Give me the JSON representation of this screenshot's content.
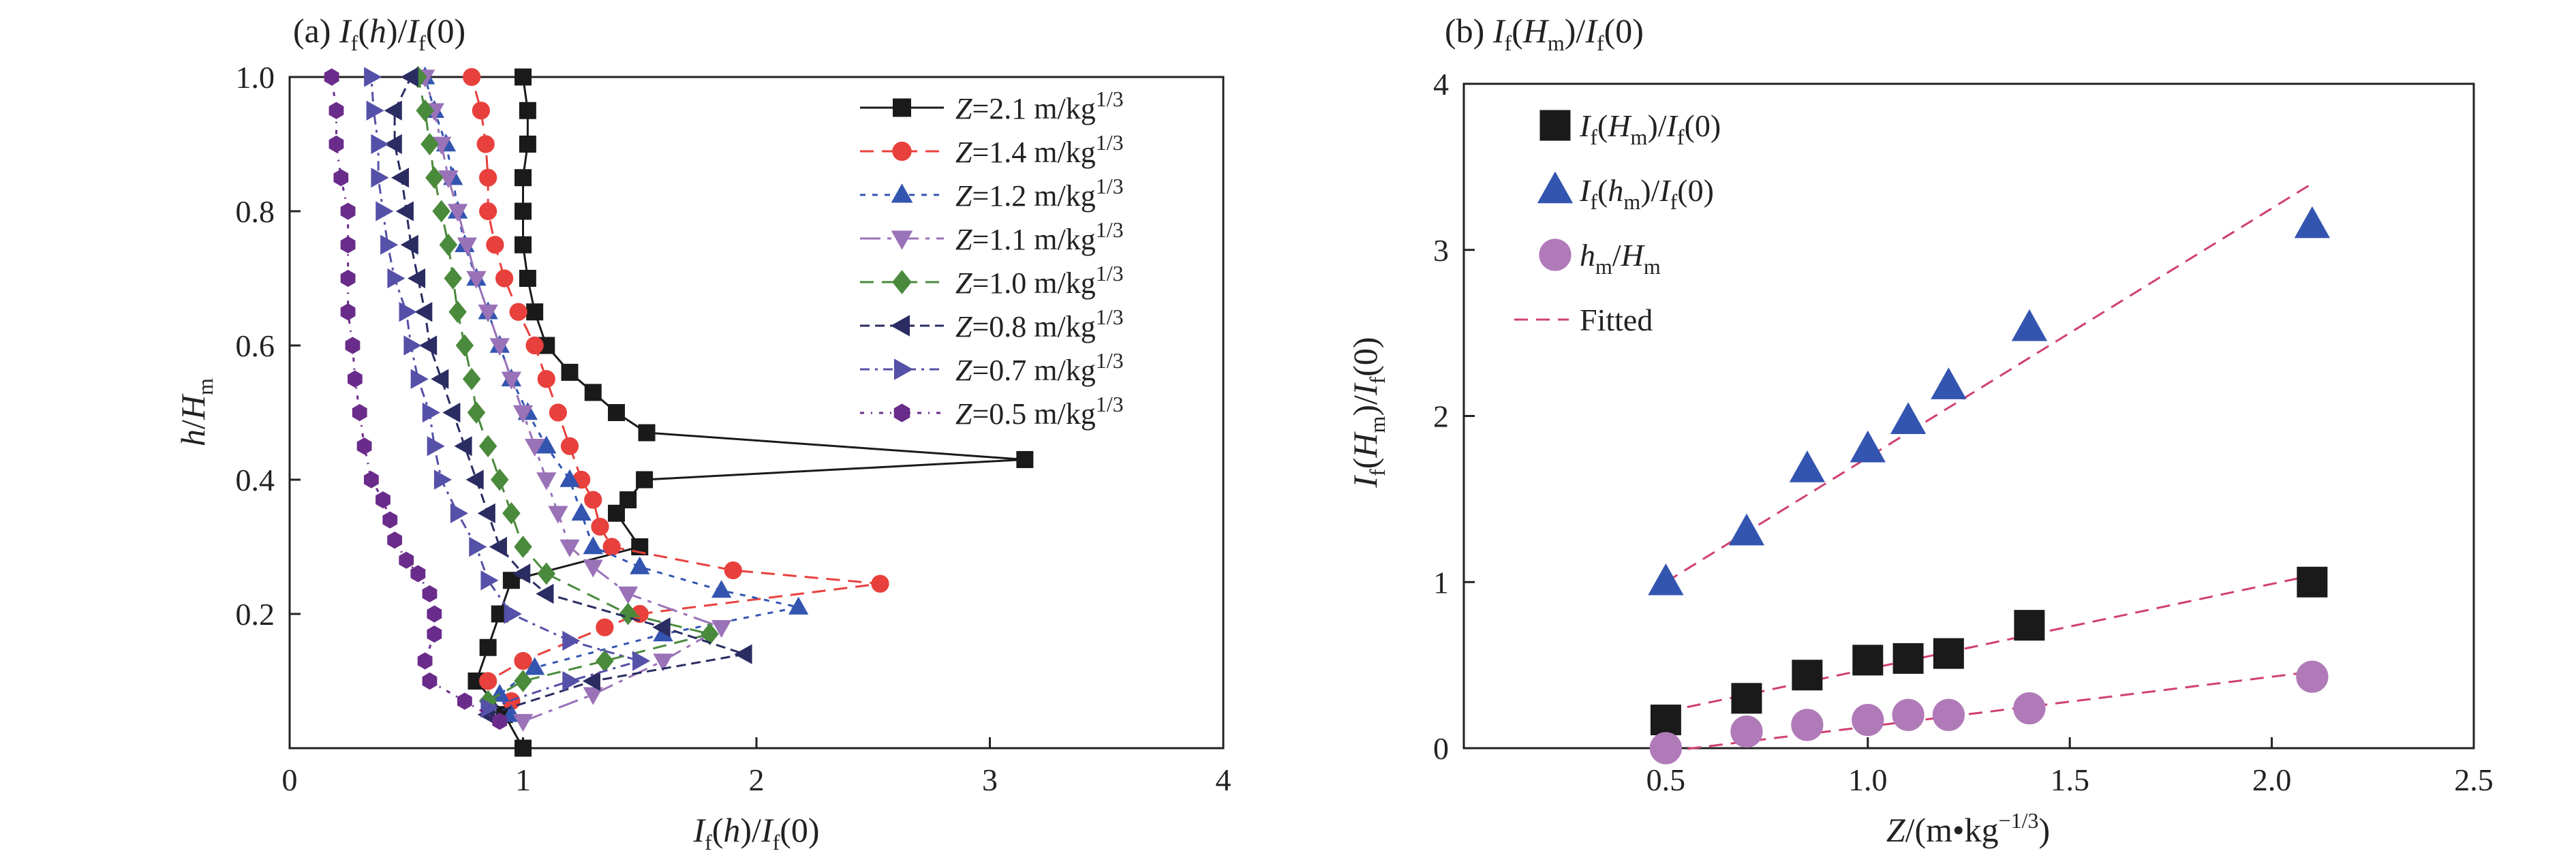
{
  "panel_a": {
    "title": {
      "pre": "(a) ",
      "I": "I",
      "f": "f",
      "h": "h",
      "mid": ")/",
      "I2": "I",
      "f2": "f",
      "end": "(0)"
    },
    "xlabel": {
      "I": "I",
      "f": "f",
      "h": "h",
      "mid": ")/",
      "I2": "I",
      "f2": "f",
      "end": "(0)"
    },
    "ylabel": {
      "h": "h",
      "slash": "/",
      "H": "H",
      "m": "m"
    },
    "legend_prefix": "Z",
    "legend_unit": " m/kg",
    "legend_exp": "1/3"
  },
  "panel_b": {
    "title": {
      "pre": "(b) ",
      "I": "I",
      "f": "f",
      "H": "H",
      "m": "m",
      "mid": ")/",
      "I2": "I",
      "f2": "f",
      "end": "(0)"
    },
    "ylabel": {
      "I": "I",
      "f": "f",
      "H": "H",
      "m": "m",
      "mid": ")/",
      "I2": "I",
      "f2": "f",
      "end": "(0)"
    },
    "xlabel": {
      "Z": "Z",
      "mid": "/(m•kg",
      "exp": "−1/3",
      "end": ")"
    },
    "legend": {
      "s1": {
        "I": "I",
        "f": "f",
        "H": "H",
        "m": "m",
        "mid": ")/",
        "I2": "I",
        "f2": "f",
        "end": "(0)"
      },
      "s2": {
        "I": "I",
        "f": "f",
        "h": "h",
        "m": "m",
        "mid": ")/",
        "I2": "I",
        "f2": "f",
        "end": "(0)"
      },
      "s3": {
        "h": "h",
        "m": "m",
        "slash": "/",
        "H": "H",
        "m2": "m"
      },
      "s4": "Fitted"
    }
  },
  "chart_data": [
    {
      "type": "line",
      "title": "(a) If(h)/If(0)",
      "xlabel": "If(h)/If(0)",
      "ylabel": "h/Hm",
      "xlim": [
        0,
        4
      ],
      "ylim": [
        0,
        1
      ],
      "xticks": [
        0,
        1,
        2,
        3,
        4
      ],
      "yticks": [
        0.2,
        0.4,
        0.6,
        0.8,
        1.0
      ],
      "legend_position": "top-right",
      "series": [
        {
          "name": "Z=2.1 m/kg1/3",
          "z": "2.1",
          "color": "#1a1a1a",
          "marker": "square",
          "dash": "",
          "points": [
            [
              1.0,
              0.0
            ],
            [
              0.92,
              0.05
            ],
            [
              0.8,
              0.1
            ],
            [
              0.85,
              0.15
            ],
            [
              0.9,
              0.2
            ],
            [
              0.95,
              0.25
            ],
            [
              1.5,
              0.3
            ],
            [
              1.4,
              0.35
            ],
            [
              1.45,
              0.37
            ],
            [
              1.52,
              0.4
            ],
            [
              3.15,
              0.43
            ],
            [
              1.53,
              0.47
            ],
            [
              1.4,
              0.5
            ],
            [
              1.3,
              0.53
            ],
            [
              1.2,
              0.56
            ],
            [
              1.1,
              0.6
            ],
            [
              1.05,
              0.65
            ],
            [
              1.02,
              0.7
            ],
            [
              1.0,
              0.75
            ],
            [
              1.0,
              0.8
            ],
            [
              1.0,
              0.85
            ],
            [
              1.02,
              0.9
            ],
            [
              1.02,
              0.95
            ],
            [
              1.0,
              1.0
            ]
          ]
        },
        {
          "name": "Z=1.4 m/kg1/3",
          "z": "1.4",
          "color": "#e8403c",
          "marker": "circle",
          "dash": "20,12",
          "points": [
            [
              0.95,
              0.07
            ],
            [
              0.85,
              0.1
            ],
            [
              1.0,
              0.13
            ],
            [
              1.35,
              0.18
            ],
            [
              1.5,
              0.2
            ],
            [
              2.53,
              0.245
            ],
            [
              1.9,
              0.265
            ],
            [
              1.38,
              0.3
            ],
            [
              1.33,
              0.33
            ],
            [
              1.3,
              0.37
            ],
            [
              1.25,
              0.4
            ],
            [
              1.2,
              0.45
            ],
            [
              1.15,
              0.5
            ],
            [
              1.1,
              0.55
            ],
            [
              1.05,
              0.6
            ],
            [
              0.98,
              0.65
            ],
            [
              0.92,
              0.7
            ],
            [
              0.88,
              0.75
            ],
            [
              0.85,
              0.8
            ],
            [
              0.85,
              0.85
            ],
            [
              0.84,
              0.9
            ],
            [
              0.82,
              0.95
            ],
            [
              0.78,
              1.0
            ]
          ]
        },
        {
          "name": "Z=1.2 m/kg1/3",
          "z": "1.2",
          "color": "#3355b0",
          "marker": "triangle-up",
          "dash": "8,10",
          "points": [
            [
              0.95,
              0.05
            ],
            [
              0.9,
              0.08
            ],
            [
              1.05,
              0.12
            ],
            [
              1.6,
              0.17
            ],
            [
              2.18,
              0.21
            ],
            [
              1.85,
              0.235
            ],
            [
              1.5,
              0.27
            ],
            [
              1.3,
              0.3
            ],
            [
              1.25,
              0.35
            ],
            [
              1.2,
              0.4
            ],
            [
              1.1,
              0.45
            ],
            [
              1.02,
              0.5
            ],
            [
              0.95,
              0.55
            ],
            [
              0.9,
              0.6
            ],
            [
              0.85,
              0.65
            ],
            [
              0.8,
              0.7
            ],
            [
              0.75,
              0.75
            ],
            [
              0.72,
              0.8
            ],
            [
              0.7,
              0.85
            ],
            [
              0.67,
              0.9
            ],
            [
              0.62,
              0.95
            ],
            [
              0.58,
              1.0
            ]
          ]
        },
        {
          "name": "Z=1.1 m/kg1/3",
          "z": "1.1",
          "color": "#9a72b8",
          "marker": "triangle-down",
          "dash": "30,10,6,10",
          "points": [
            [
              1.0,
              0.04
            ],
            [
              1.3,
              0.08
            ],
            [
              1.6,
              0.13
            ],
            [
              1.85,
              0.18
            ],
            [
              1.45,
              0.23
            ],
            [
              1.3,
              0.27
            ],
            [
              1.2,
              0.3
            ],
            [
              1.15,
              0.35
            ],
            [
              1.1,
              0.4
            ],
            [
              1.05,
              0.45
            ],
            [
              1.0,
              0.5
            ],
            [
              0.95,
              0.55
            ],
            [
              0.9,
              0.6
            ],
            [
              0.85,
              0.65
            ],
            [
              0.8,
              0.7
            ],
            [
              0.76,
              0.75
            ],
            [
              0.72,
              0.8
            ],
            [
              0.68,
              0.85
            ],
            [
              0.65,
              0.9
            ],
            [
              0.62,
              0.95
            ],
            [
              0.58,
              1.0
            ]
          ]
        },
        {
          "name": "Z=1.0 m/kg1/3",
          "z": "1.0",
          "color": "#4a8a3c",
          "marker": "diamond",
          "dash": "20,12",
          "points": [
            [
              0.85,
              0.07
            ],
            [
              1.0,
              0.1
            ],
            [
              1.35,
              0.13
            ],
            [
              1.8,
              0.17
            ],
            [
              1.45,
              0.2
            ],
            [
              1.1,
              0.26
            ],
            [
              1.0,
              0.3
            ],
            [
              0.95,
              0.35
            ],
            [
              0.9,
              0.4
            ],
            [
              0.85,
              0.45
            ],
            [
              0.8,
              0.5
            ],
            [
              0.78,
              0.55
            ],
            [
              0.75,
              0.6
            ],
            [
              0.72,
              0.65
            ],
            [
              0.7,
              0.7
            ],
            [
              0.68,
              0.75
            ],
            [
              0.65,
              0.8
            ],
            [
              0.62,
              0.85
            ],
            [
              0.6,
              0.9
            ],
            [
              0.58,
              0.95
            ],
            [
              0.55,
              1.0
            ]
          ]
        },
        {
          "name": "Z=0.8 m/kg1/3",
          "z": "0.8",
          "color": "#2a2c62",
          "marker": "triangle-left",
          "dash": "14,8",
          "points": [
            [
              0.85,
              0.05
            ],
            [
              1.3,
              0.1
            ],
            [
              1.95,
              0.14
            ],
            [
              1.6,
              0.18
            ],
            [
              1.1,
              0.23
            ],
            [
              1.0,
              0.26
            ],
            [
              0.9,
              0.3
            ],
            [
              0.85,
              0.35
            ],
            [
              0.8,
              0.4
            ],
            [
              0.75,
              0.45
            ],
            [
              0.7,
              0.5
            ],
            [
              0.65,
              0.55
            ],
            [
              0.6,
              0.6
            ],
            [
              0.58,
              0.65
            ],
            [
              0.55,
              0.7
            ],
            [
              0.52,
              0.75
            ],
            [
              0.5,
              0.8
            ],
            [
              0.48,
              0.85
            ],
            [
              0.45,
              0.9
            ],
            [
              0.45,
              0.95
            ],
            [
              0.52,
              1.0
            ]
          ]
        },
        {
          "name": "Z=0.7 m/kg1/3",
          "z": "0.7",
          "color": "#5550a8",
          "marker": "triangle-right",
          "dash": "14,8,4,8",
          "points": [
            [
              0.85,
              0.06
            ],
            [
              1.2,
              0.1
            ],
            [
              1.5,
              0.13
            ],
            [
              1.2,
              0.16
            ],
            [
              0.95,
              0.2
            ],
            [
              0.85,
              0.25
            ],
            [
              0.8,
              0.3
            ],
            [
              0.72,
              0.35
            ],
            [
              0.65,
              0.4
            ],
            [
              0.62,
              0.45
            ],
            [
              0.6,
              0.5
            ],
            [
              0.55,
              0.55
            ],
            [
              0.52,
              0.6
            ],
            [
              0.5,
              0.65
            ],
            [
              0.45,
              0.7
            ],
            [
              0.42,
              0.75
            ],
            [
              0.4,
              0.8
            ],
            [
              0.38,
              0.85
            ],
            [
              0.38,
              0.9
            ],
            [
              0.36,
              0.95
            ],
            [
              0.35,
              1.0
            ]
          ]
        },
        {
          "name": "Z=0.5 m/kg1/3",
          "z": "0.5",
          "color": "#6a2c8a",
          "marker": "hexagon",
          "dash": "6,10,2,10",
          "points": [
            [
              0.9,
              0.04
            ],
            [
              0.75,
              0.07
            ],
            [
              0.6,
              0.1
            ],
            [
              0.58,
              0.13
            ],
            [
              0.62,
              0.17
            ],
            [
              0.62,
              0.2
            ],
            [
              0.6,
              0.23
            ],
            [
              0.55,
              0.26
            ],
            [
              0.5,
              0.28
            ],
            [
              0.45,
              0.31
            ],
            [
              0.43,
              0.34
            ],
            [
              0.4,
              0.37
            ],
            [
              0.35,
              0.4
            ],
            [
              0.32,
              0.45
            ],
            [
              0.3,
              0.5
            ],
            [
              0.28,
              0.55
            ],
            [
              0.27,
              0.6
            ],
            [
              0.25,
              0.65
            ],
            [
              0.25,
              0.7
            ],
            [
              0.25,
              0.75
            ],
            [
              0.25,
              0.8
            ],
            [
              0.22,
              0.85
            ],
            [
              0.2,
              0.9
            ],
            [
              0.2,
              0.95
            ],
            [
              0.18,
              1.0
            ]
          ]
        }
      ]
    },
    {
      "type": "scatter",
      "title": "(b) If(Hm)/If(0)",
      "xlabel": "Z/(m•kg−1/3)",
      "ylabel": "If(Hm)/If(0)",
      "xlim": [
        0,
        2.5
      ],
      "ylim": [
        0,
        4
      ],
      "xticks": [
        0.5,
        1.0,
        1.5,
        2.0,
        2.5
      ],
      "yticks": [
        0,
        1,
        2,
        3,
        4
      ],
      "legend_position": "top-left",
      "series": [
        {
          "name": "If(Hm)/If(0)",
          "color": "#1a1a1a",
          "marker": "square",
          "x": [
            0.5,
            0.7,
            0.85,
            1.0,
            1.1,
            1.2,
            1.4,
            2.1
          ],
          "y": [
            0.17,
            0.3,
            0.44,
            0.53,
            0.54,
            0.57,
            0.74,
            1.0
          ]
        },
        {
          "name": "If(hm)/If(0)",
          "color": "#3355b0",
          "marker": "triangle-up",
          "x": [
            0.5,
            0.7,
            0.85,
            1.0,
            1.1,
            1.2,
            1.4,
            2.1
          ],
          "y": [
            1.0,
            1.3,
            1.68,
            1.8,
            1.97,
            2.18,
            2.53,
            3.15
          ]
        },
        {
          "name": "hm/Hm",
          "color": "#b07ab8",
          "marker": "circle",
          "x": [
            0.5,
            0.7,
            0.85,
            1.0,
            1.1,
            1.2,
            1.4,
            2.1
          ],
          "y": [
            0.0,
            0.1,
            0.14,
            0.17,
            0.2,
            0.2,
            0.24,
            0.43
          ]
        }
      ],
      "fits": [
        {
          "name": "Fitted",
          "color": "#d04070",
          "x": [
            0.5,
            2.1
          ],
          "y": [
            1.0,
            3.4
          ]
        },
        {
          "name": "Fitted",
          "color": "#d04070",
          "x": [
            0.5,
            2.1
          ],
          "y": [
            0.22,
            1.04
          ]
        },
        {
          "name": "Fitted",
          "color": "#d04070",
          "x": [
            0.5,
            2.1
          ],
          "y": [
            -0.02,
            0.46
          ]
        }
      ]
    }
  ]
}
